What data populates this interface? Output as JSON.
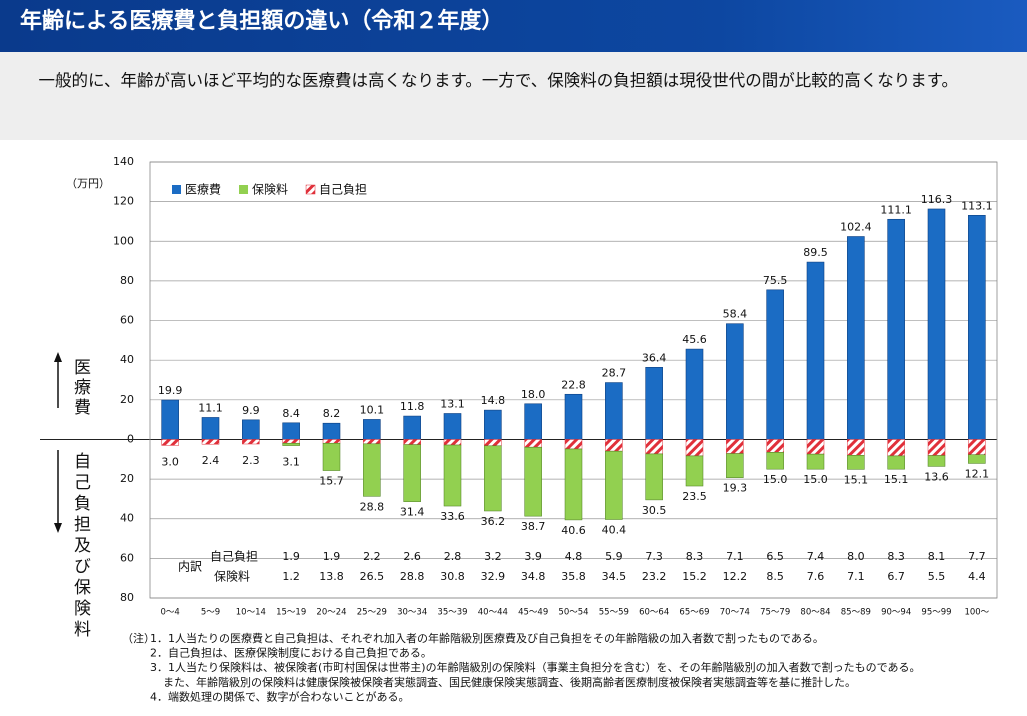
{
  "header": {
    "title": "年齢による医療費と負担額の違い（令和２年度）"
  },
  "intro": "一般的に、年齢が高いほど平均的な医療費は高くなります。一方で、保険料の負担額は現役世代の間が比較的高くなります。",
  "chart_data": {
    "type": "bar",
    "y_unit": "（万円）",
    "up_label": "医療費",
    "down_label": "自己負担及び保険料",
    "breakdown_label": "内訳",
    "categories": [
      "0～4",
      "5～9",
      "10～14",
      "15～19",
      "20～24",
      "25～29",
      "30～34",
      "35～39",
      "40～44",
      "45～49",
      "50～54",
      "55～59",
      "60～64",
      "65～69",
      "70～74",
      "75～79",
      "80～84",
      "85～89",
      "90～94",
      "95～99",
      "100～"
    ],
    "series": [
      {
        "name": "医療費",
        "color": "#1b6cc4",
        "direction": "up",
        "values": [
          19.9,
          11.1,
          9.9,
          8.4,
          8.2,
          10.1,
          11.8,
          13.1,
          14.8,
          18,
          22.8,
          28.7,
          36.4,
          45.6,
          58.4,
          75.5,
          89.5,
          102.4,
          111.1,
          116.3,
          113.1
        ],
        "value_labels": [
          "19.9",
          "11.1",
          "9.9",
          "8.4",
          "8.2",
          "10.1",
          "11.8",
          "13.1",
          "14.8",
          "18.0",
          "22.8",
          "28.7",
          "36.4",
          "45.6",
          "58.4",
          "75.5",
          "89.5",
          "102.4",
          "111.1",
          "116.3",
          "113.1"
        ]
      },
      {
        "name": "保険料",
        "color": "#92d050",
        "direction": "down",
        "values": [
          0,
          0,
          0,
          1.2,
          13.8,
          26.5,
          28.8,
          30.8,
          32.9,
          34.8,
          35.8,
          34.5,
          23.2,
          15.2,
          12.2,
          8.5,
          7.6,
          7.1,
          6.7,
          5.5,
          4.4
        ],
        "value_labels": [
          null,
          null,
          null,
          "1.2",
          "13.8",
          "26.5",
          "28.8",
          "30.8",
          "32.9",
          "34.8",
          "35.8",
          "34.5",
          "23.2",
          "15.2",
          "12.2",
          "8.5",
          "7.6",
          "7.1",
          "6.7",
          "5.5",
          "4.4"
        ]
      },
      {
        "name": "自己負担",
        "color": "#e0303a",
        "pattern": "hatch",
        "direction": "down",
        "values": [
          3,
          2.4,
          2.3,
          1.9,
          1.9,
          2.2,
          2.6,
          2.8,
          3.2,
          3.9,
          4.8,
          5.9,
          7.3,
          8.3,
          7.1,
          6.5,
          7.4,
          8,
          8.3,
          8.1,
          7.7
        ],
        "value_labels": [
          null,
          null,
          null,
          "1.9",
          "1.9",
          "2.2",
          "2.6",
          "2.8",
          "3.2",
          "3.9",
          "4.8",
          "5.9",
          "7.3",
          "8.3",
          "7.1",
          "6.5",
          "7.4",
          "8.0",
          "8.3",
          "8.1",
          "7.7"
        ]
      }
    ],
    "burden_totals": [
      "3.0",
      "2.4",
      "2.3",
      "3.1",
      "15.7",
      "28.8",
      "31.4",
      "33.6",
      "36.2",
      "38.7",
      "40.6",
      "40.4",
      "30.5",
      "23.5",
      "19.3",
      "15.0",
      "15.0",
      "15.1",
      "15.1",
      "13.6",
      "12.1"
    ],
    "ylim": [
      -80,
      140
    ],
    "yticks": [
      {
        "value": -80,
        "label": "80"
      },
      {
        "value": -60,
        "label": "60"
      },
      {
        "value": -40,
        "label": "40"
      },
      {
        "value": -20,
        "label": "20"
      },
      0,
      20,
      40,
      60,
      80,
      100,
      120,
      140
    ],
    "grid": true,
    "legend": "top-left"
  },
  "notes": {
    "prefix": "（注）",
    "lines": [
      "1．1人当たりの医療費と自己負担は、それぞれ加入者の年齢階級別医療費及び自己負担をその年齢階級の加入者数で割ったものである。",
      "2．自己負担は、医療保険制度における自己負担である。",
      "3．1人当たり保険料は、被保険者(市町村国保は世帯主)の年齢階級別の保険料（事業主負担分を含む）を、その年齢階級別の加入者数で割ったものである。",
      "また、年齢階級別の保険料は健康保険被保険者実態調査、国民健康保険実態調査、後期高齢者医療制度被保険者実態調査等を基に推計した。",
      "4．端数処理の関係で、数字が合わないことがある。"
    ]
  }
}
